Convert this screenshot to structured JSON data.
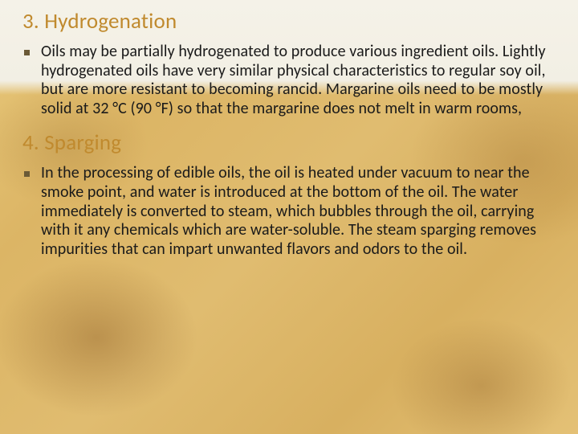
{
  "colors": {
    "heading": "#c08a2e",
    "body": "#1a1a1a",
    "bullet": "#6b5a36"
  },
  "sections": [
    {
      "heading": "3. Hydrogenation",
      "body": "Oils may be partially hydrogenated to produce various ingredient oils. Lightly hydrogenated oils have very similar physical characteristics to regular soy oil, but are more resistant to becoming rancid. Margarine oils need to be mostly solid at 32 °C (90 °F) so that the margarine does not melt in warm rooms,"
    },
    {
      "heading": "4. Sparging",
      "body": "In the processing of edible oils, the oil is heated under vacuum to near the smoke point, and water is introduced at the bottom of the oil. The water immediately is converted to steam, which bubbles through the oil, carrying with it any chemicals which are water-soluble. The steam sparging removes impurities that can impart unwanted flavors and odors to the oil."
    }
  ]
}
